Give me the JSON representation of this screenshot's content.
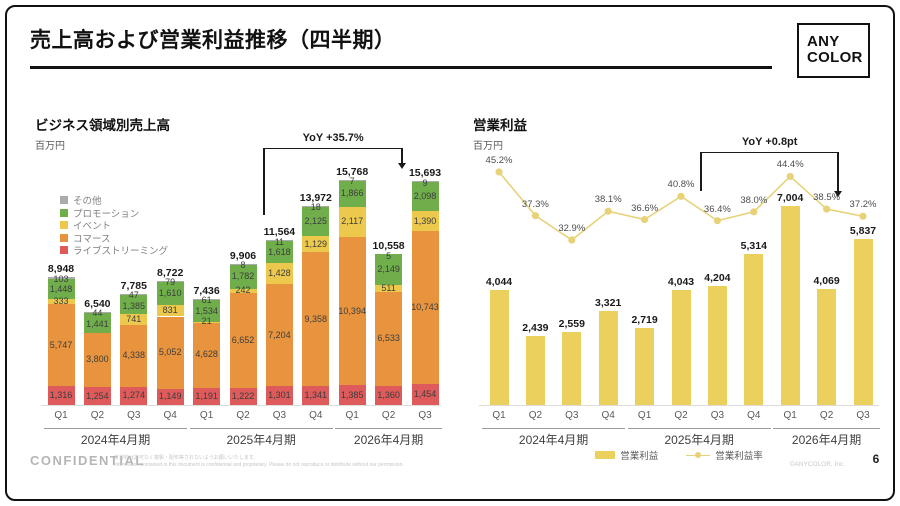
{
  "slide": {
    "title": "売上高および営業利益推移（四半期）",
    "logo": {
      "line1": "ANY",
      "line2": "COLOR"
    },
    "footer": {
      "confidential": "CONFIDENTIAL",
      "disclaimer_jp": "本資料は許可なく複製・配布等されないようお願いいたします。",
      "disclaimer_en": "Information contained in this document is confidential and proprietary. Please do not reproduce or distribute without our permission.",
      "copyright": "©ANYCOLOR, Inc.",
      "page": "6"
    }
  },
  "chart_data": [
    {
      "type": "bar",
      "stacked": true,
      "title": "ビジネス領域別売上高",
      "unit": "百万円",
      "categories": [
        "Q1",
        "Q2",
        "Q3",
        "Q4",
        "Q1",
        "Q2",
        "Q3",
        "Q4",
        "Q1",
        "Q2",
        "Q3"
      ],
      "groups": [
        {
          "label": "2024年4月期",
          "span": 4
        },
        {
          "label": "2025年4月期",
          "span": 4
        },
        {
          "label": "2026年4月期",
          "span": 3
        }
      ],
      "series": [
        {
          "name": "ライブストリーミング",
          "color": "#df5a5a",
          "values": [
            1316,
            1254,
            1274,
            1149,
            1191,
            1222,
            1301,
            1341,
            1385,
            1360,
            1454
          ]
        },
        {
          "name": "コマース",
          "color": "#e8943e",
          "values": [
            5747,
            3800,
            4338,
            5052,
            4628,
            6652,
            7204,
            9358,
            10394,
            6533,
            10743
          ]
        },
        {
          "name": "イベント",
          "color": "#ecc94d",
          "values": [
            333,
            0,
            741,
            831,
            21,
            242,
            1428,
            1129,
            2117,
            511,
            1390
          ]
        },
        {
          "name": "プロモーション",
          "color": "#6fae4b",
          "values": [
            1448,
            1441,
            1385,
            1610,
            1534,
            1782,
            1618,
            2125,
            1866,
            2149,
            2098
          ]
        },
        {
          "name": "その他",
          "color": "#ababab",
          "values": [
            103,
            44,
            47,
            79,
            61,
            8,
            11,
            18,
            7,
            5,
            9
          ]
        }
      ],
      "totals": [
        8948,
        6540,
        7785,
        8722,
        7436,
        9906,
        11564,
        13972,
        15768,
        10558,
        15693
      ],
      "annotation": {
        "label": "YoY +35.7%",
        "from_index": 6,
        "to_index": 10
      },
      "legend_position": "top-left",
      "grid": false
    },
    {
      "type": "bar+line",
      "title": "営業利益",
      "unit": "百万円",
      "categories": [
        "Q1",
        "Q2",
        "Q3",
        "Q4",
        "Q1",
        "Q2",
        "Q3",
        "Q4",
        "Q1",
        "Q2",
        "Q3"
      ],
      "groups": [
        {
          "label": "2024年4月期",
          "span": 4
        },
        {
          "label": "2025年4月期",
          "span": 4
        },
        {
          "label": "2026年4月期",
          "span": 3
        }
      ],
      "bars": {
        "name": "営業利益",
        "color": "#ecd05e",
        "values": [
          4044,
          2439,
          2559,
          3321,
          2719,
          4043,
          4204,
          5314,
          7004,
          4069,
          5837
        ]
      },
      "line": {
        "name": "営業利益率",
        "color": "#e8d279",
        "unit": "%",
        "values": [
          45.2,
          37.3,
          32.9,
          38.1,
          36.6,
          40.8,
          36.4,
          38.0,
          44.4,
          38.5,
          37.2
        ]
      },
      "annotation": {
        "label": "YoY +0.8pt",
        "from_index": 6,
        "to_index": 10
      },
      "legend_position": "bottom",
      "grid": false
    }
  ]
}
